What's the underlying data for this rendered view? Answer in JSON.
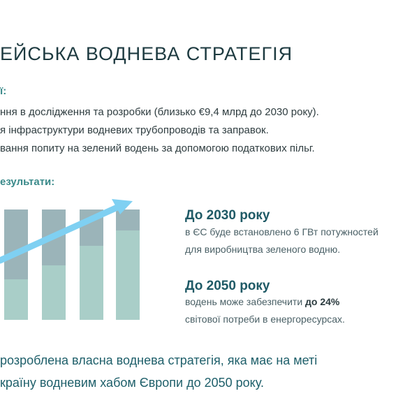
{
  "title": "ЕЙСЬКА ВОДНЕВА СТРАТЕГІЯ",
  "measures_label": "ї:",
  "measures": [
    "ння в дослідження та розробки (близько €9,4 млрд до 2030 року).",
    "я інфраструктури водневих трубопроводів та заправок.",
    "вання попиту на зелений водень за допомогою податкових пільг."
  ],
  "results_label": "езультати:",
  "result_2030": {
    "title": "До 2030 року",
    "line1": "в ЄС буде встановлено 6 ГВт потужностей",
    "line2": "для виробництва зеленого водню."
  },
  "result_2050": {
    "title": "До 2050 року",
    "line1_pre": "водень може забезпечити ",
    "line1_bold": "до 24%",
    "line2": "світової потреби в енергоресурсах."
  },
  "bottom": {
    "line1": "розроблена власна воднева стратегія, яка має на меті",
    "line2": "країну водневим хабом Європи до 2050 року."
  },
  "colors": {
    "bar_light": "#a9cec8",
    "bar_dark": "#9bb4b9",
    "arrow": "#7fd0f2",
    "accent": "#3a8a8a"
  }
}
